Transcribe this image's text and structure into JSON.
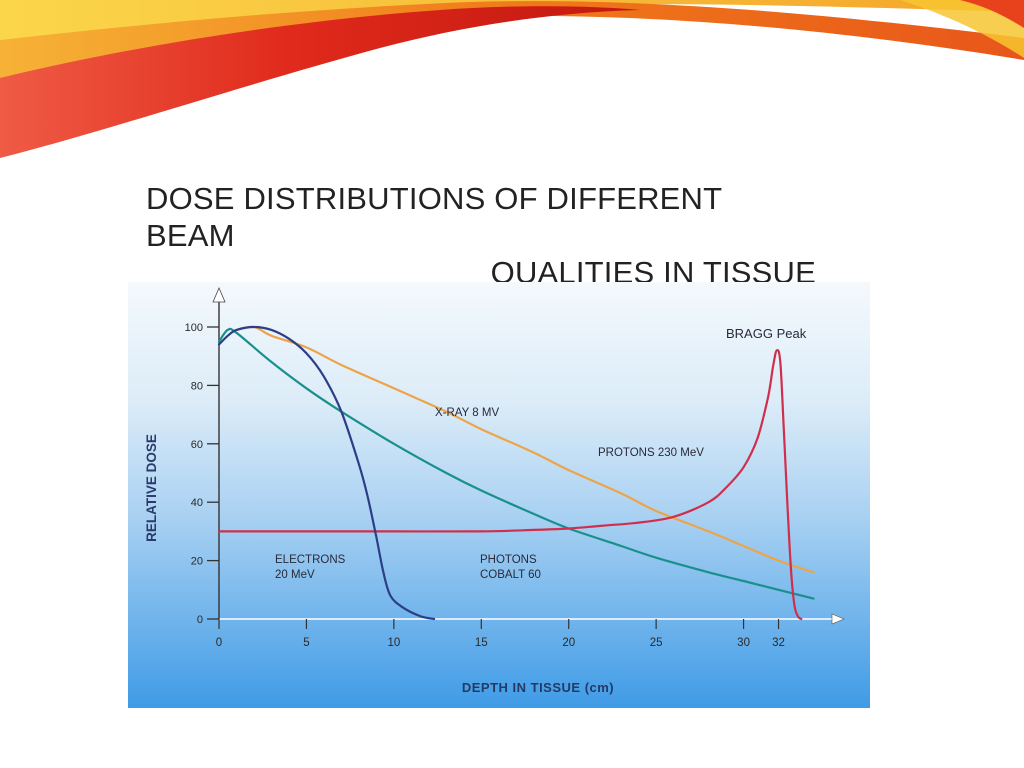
{
  "slide": {
    "title_line1": "DOSE DISTRIBUTIONS OF  DIFFERENT BEAM",
    "title_line2": "QUALITIES IN TISSUE"
  },
  "theme": {
    "accent_red": "#d7261e",
    "accent_orange": "#f28a1a",
    "accent_yellow": "#f7c531",
    "panel_top": "#f4f9fd",
    "panel_bottom": "#3f9be6"
  },
  "chart_data": {
    "type": "line",
    "xlabel": "DEPTH IN TISSUE (cm)",
    "ylabel": "RELATIVE DOSE",
    "xlim": [
      0,
      35
    ],
    "ylim": [
      0,
      100
    ],
    "x_ticks": [
      0,
      5,
      10,
      15,
      20,
      25,
      30,
      32
    ],
    "y_ticks": [
      0,
      20,
      40,
      60,
      80,
      100
    ],
    "grid": false,
    "annotation": "BRAGG Peak",
    "series": [
      {
        "name": "ELECTRONS 20 MeV",
        "color": "#2b3e86",
        "points": [
          [
            0,
            94
          ],
          [
            0.5,
            97
          ],
          [
            1,
            99
          ],
          [
            2,
            100
          ],
          [
            3,
            99
          ],
          [
            4,
            96
          ],
          [
            5,
            91
          ],
          [
            6,
            83
          ],
          [
            7,
            71
          ],
          [
            8,
            53
          ],
          [
            8.5,
            42
          ],
          [
            9,
            28
          ],
          [
            9.4,
            16
          ],
          [
            9.8,
            8
          ],
          [
            10.5,
            4
          ],
          [
            11.5,
            1
          ],
          [
            12.3,
            0
          ]
        ]
      },
      {
        "name": "PHOTONS COBALT 60",
        "color": "#19908c",
        "points": [
          [
            0,
            95
          ],
          [
            0.5,
            99
          ],
          [
            1,
            98
          ],
          [
            3,
            88
          ],
          [
            5,
            79
          ],
          [
            7,
            71
          ],
          [
            10,
            60
          ],
          [
            13,
            50
          ],
          [
            15,
            44
          ],
          [
            18,
            36
          ],
          [
            20,
            31
          ],
          [
            23,
            25
          ],
          [
            25,
            21
          ],
          [
            28,
            16
          ],
          [
            30,
            13
          ],
          [
            32,
            10
          ],
          [
            34,
            7
          ]
        ]
      },
      {
        "name": "X-RAY 8 MV",
        "color": "#eda449",
        "points": [
          [
            1,
            99
          ],
          [
            2,
            100
          ],
          [
            3,
            97
          ],
          [
            5,
            93
          ],
          [
            7,
            87
          ],
          [
            10,
            79
          ],
          [
            13,
            71
          ],
          [
            15,
            65
          ],
          [
            18,
            57
          ],
          [
            20,
            51
          ],
          [
            23,
            43
          ],
          [
            25,
            37
          ],
          [
            28,
            30
          ],
          [
            30,
            25
          ],
          [
            32,
            20
          ],
          [
            34,
            16
          ]
        ]
      },
      {
        "name": "PROTONS 230 MeV",
        "color": "#cf2f4c",
        "points": [
          [
            0,
            30
          ],
          [
            5,
            30
          ],
          [
            10,
            30
          ],
          [
            15,
            30
          ],
          [
            18,
            30.5
          ],
          [
            20,
            31
          ],
          [
            22,
            32
          ],
          [
            24,
            33
          ],
          [
            26,
            35
          ],
          [
            28,
            40
          ],
          [
            29,
            45
          ],
          [
            30,
            52
          ],
          [
            30.8,
            62
          ],
          [
            31.4,
            76
          ],
          [
            31.7,
            87
          ],
          [
            31.9,
            92
          ],
          [
            32.1,
            88
          ],
          [
            32.3,
            65
          ],
          [
            32.5,
            40
          ],
          [
            32.7,
            18
          ],
          [
            32.9,
            5
          ],
          [
            33.1,
            1
          ],
          [
            33.3,
            0
          ]
        ]
      }
    ]
  }
}
